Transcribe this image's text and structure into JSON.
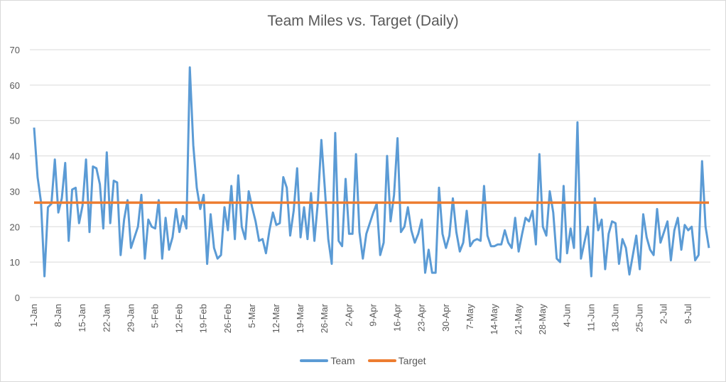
{
  "chart_data": {
    "type": "line",
    "title": "Team Miles vs. Target (Daily)",
    "xlabel": "",
    "ylabel": "",
    "ylim": [
      0,
      70
    ],
    "yticks": [
      0,
      10,
      20,
      30,
      40,
      50,
      60,
      70
    ],
    "grid": true,
    "legend_position": "bottom",
    "x_tick_labels": [
      "1-Jan",
      "8-Jan",
      "15-Jan",
      "22-Jan",
      "29-Jan",
      "5-Feb",
      "12-Feb",
      "19-Feb",
      "26-Feb",
      "5-Mar",
      "12-Mar",
      "19-Mar",
      "26-Mar",
      "2-Apr",
      "9-Apr",
      "16-Apr",
      "23-Apr",
      "30-Apr",
      "7-May",
      "14-May",
      "21-May",
      "28-May",
      "4-Jun",
      "11-Jun",
      "18-Jun",
      "25-Jun",
      "2-Jul",
      "9-Jul"
    ],
    "x_start": "1-Jan",
    "x_step_days": 1,
    "series": [
      {
        "name": "Team",
        "color": "#5b9bd5",
        "values": [
          48,
          34,
          27,
          6,
          25.5,
          26.5,
          39,
          24,
          28,
          38,
          16,
          30.5,
          31,
          21,
          26,
          39,
          18.5,
          37,
          36.5,
          32,
          19.5,
          41,
          21,
          33,
          32.5,
          12,
          22,
          27.5,
          14,
          17,
          20,
          29,
          11,
          22,
          20,
          19.5,
          27.5,
          11,
          22.5,
          13.5,
          17,
          25,
          18.5,
          23,
          19.5,
          65,
          43,
          31,
          25,
          29,
          9.5,
          23.5,
          14,
          11,
          12,
          25.5,
          19,
          31.5,
          16.5,
          34.5,
          20,
          16.5,
          30,
          25.5,
          21.5,
          16,
          16.5,
          12.5,
          19,
          24,
          20.5,
          21,
          34,
          31,
          17.5,
          24.5,
          36.5,
          17,
          25.5,
          16.5,
          29.5,
          16,
          27,
          44.5,
          31,
          16.5,
          9.5,
          46.5,
          16,
          14.5,
          33.5,
          18,
          18,
          40.5,
          18.5,
          11,
          18,
          21,
          24,
          26.5,
          12,
          15.5,
          40,
          21.5,
          29,
          45,
          18.5,
          20,
          25.5,
          19,
          15.5,
          18,
          22,
          7,
          13.5,
          7,
          7,
          31,
          18,
          14,
          17.5,
          28,
          18.5,
          13,
          15.5,
          24.5,
          14.5,
          16,
          16.5,
          16,
          31.5,
          17.5,
          14.5,
          14.5,
          15,
          15,
          19,
          15.5,
          14,
          22.5,
          13,
          18,
          22.5,
          21.5,
          24.5,
          15,
          40.5,
          20,
          17.5,
          30,
          24,
          11,
          10,
          31.5,
          12.5,
          19.5,
          14,
          49.5,
          11,
          15.5,
          20,
          6,
          28,
          19,
          22,
          8,
          18,
          21.5,
          21,
          9.5,
          16.5,
          14,
          6.5,
          12,
          17.5,
          8,
          23.5,
          17,
          13.5,
          12,
          25,
          15.5,
          18.5,
          21.5,
          10.5,
          19,
          22.5,
          13.5,
          20.5,
          19,
          20,
          10.5,
          12,
          38.5,
          20,
          14
        ]
      },
      {
        "name": "Target",
        "color": "#ed7d31",
        "constant": 26.8
      }
    ]
  }
}
